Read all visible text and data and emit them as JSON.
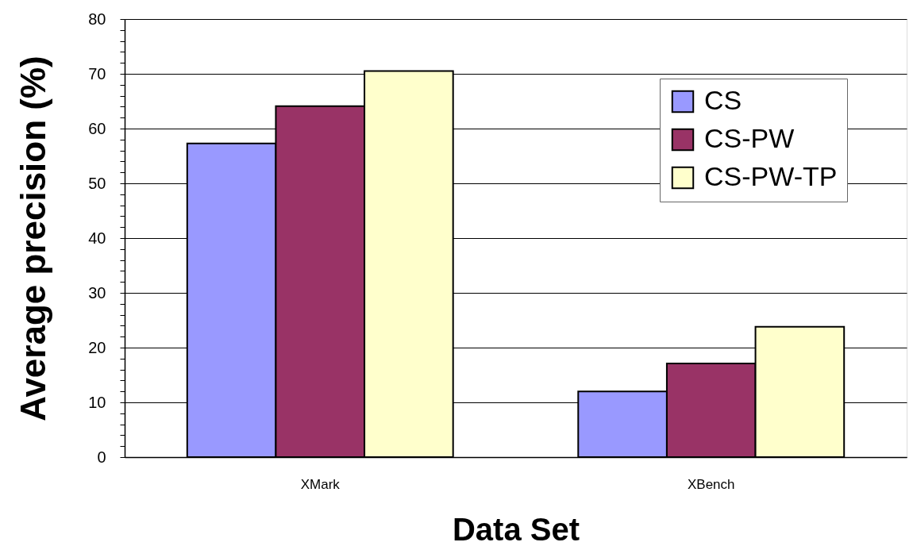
{
  "chart_data": {
    "type": "bar",
    "xlabel": "Data Set",
    "ylabel": "Average precision (%)",
    "categories": [
      "XMark",
      "XBench"
    ],
    "series": [
      {
        "name": "CS",
        "color": "#9999ff",
        "values": [
          57.3,
          12.0
        ]
      },
      {
        "name": "CS-PW",
        "color": "#993366",
        "values": [
          64.1,
          17.1
        ]
      },
      {
        "name": "CS-PW-TP",
        "color": "#ffffcc",
        "values": [
          70.5,
          23.8
        ]
      }
    ],
    "ylim": [
      0,
      80
    ],
    "yticks": [
      0,
      {
        "value": 2,
        "label": null
      },
      {
        "value": 4,
        "label": null
      },
      {
        "value": 6,
        "label": null
      },
      {
        "value": 8,
        "label": null
      },
      10,
      {
        "value": 12,
        "label": null
      },
      {
        "value": 14,
        "label": null
      },
      {
        "value": 16,
        "label": null
      },
      {
        "value": 18,
        "label": null
      },
      20,
      {
        "value": 22,
        "label": null
      },
      {
        "value": 24,
        "label": null
      },
      {
        "value": 26,
        "label": null
      },
      {
        "value": 28,
        "label": null
      },
      30,
      {
        "value": 32,
        "label": null
      },
      {
        "value": 34,
        "label": null
      },
      {
        "value": 36,
        "label": null
      },
      {
        "value": 38,
        "label": null
      },
      40,
      {
        "value": 42,
        "label": null
      },
      {
        "value": 44,
        "label": null
      },
      {
        "value": 46,
        "label": null
      },
      {
        "value": 48,
        "label": null
      },
      50,
      {
        "value": 52,
        "label": null
      },
      {
        "value": 54,
        "label": null
      },
      {
        "value": 56,
        "label": null
      },
      {
        "value": 58,
        "label": null
      },
      60,
      {
        "value": 62,
        "label": null
      },
      {
        "value": 64,
        "label": null
      },
      {
        "value": 66,
        "label": null
      },
      {
        "value": 68,
        "label": null
      },
      70,
      {
        "value": 72,
        "label": null
      },
      {
        "value": 74,
        "label": null
      },
      {
        "value": 76,
        "label": null
      },
      {
        "value": 78,
        "label": null
      },
      80
    ],
    "grid": "y",
    "legend": "top right"
  }
}
